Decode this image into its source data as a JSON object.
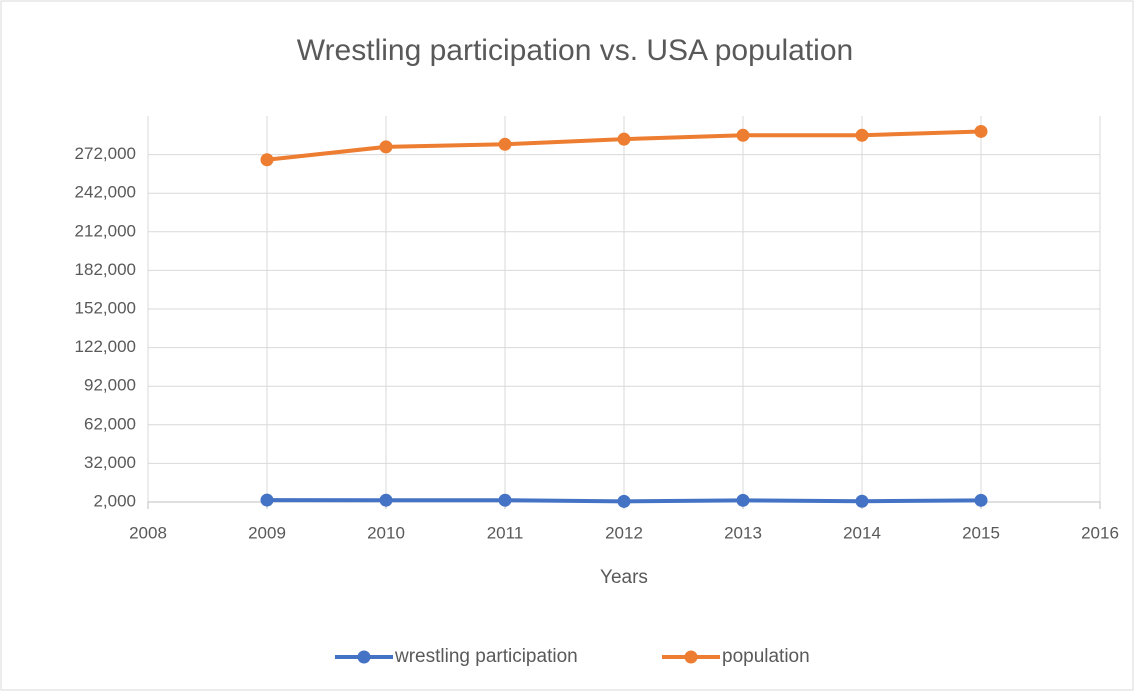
{
  "chart_data": {
    "type": "line",
    "title": "Wrestling participation vs. USA population",
    "x_label": "Years",
    "x": [
      2009,
      2010,
      2011,
      2012,
      2013,
      2014,
      2015
    ],
    "xlim": [
      2008,
      2016
    ],
    "xticks": [
      2008,
      2009,
      2010,
      2011,
      2012,
      2013,
      2014,
      2015,
      2016
    ],
    "ylim": [
      2000,
      302000
    ],
    "yticks": [
      {
        "value": 2000,
        "label": "2,000"
      },
      {
        "value": 32000,
        "label": "32,000"
      },
      {
        "value": 62000,
        "label": "62,000"
      },
      {
        "value": 92000,
        "label": "92,000"
      },
      {
        "value": 122000,
        "label": "122,000"
      },
      {
        "value": 152000,
        "label": "152,000"
      },
      {
        "value": 182000,
        "label": "182,000"
      },
      {
        "value": 212000,
        "label": "212,000"
      },
      {
        "value": 242000,
        "label": "242,000"
      },
      {
        "value": 272000,
        "label": "272,000"
      }
    ],
    "grid": true,
    "legend": "bottom",
    "series": [
      {
        "name": "wrestling participation",
        "color": "#4472c4",
        "values": [
          3500,
          3400,
          3400,
          2500,
          3300,
          2600,
          3300
        ]
      },
      {
        "name": "population",
        "color": "#ed7d31",
        "values": [
          268000,
          278000,
          280000,
          284000,
          287000,
          287000,
          290000
        ]
      }
    ]
  }
}
